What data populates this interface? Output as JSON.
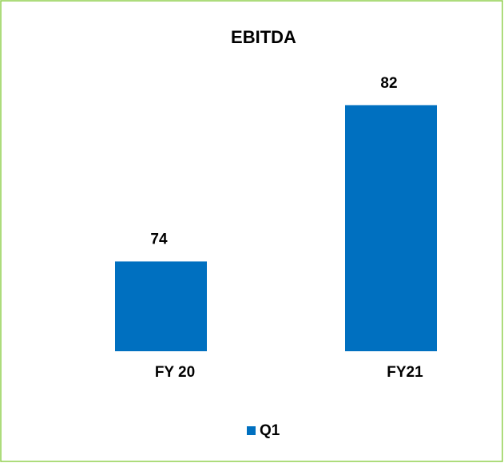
{
  "chart_data": {
    "type": "bar",
    "title": "EBITDA",
    "categories": [
      "FY 20",
      "FY21"
    ],
    "series": [
      {
        "name": "Q1",
        "color": "#0070c0",
        "values": [
          74,
          82
        ]
      }
    ],
    "ylim": [
      69.4,
      83.3
    ],
    "legend": "bottom"
  }
}
